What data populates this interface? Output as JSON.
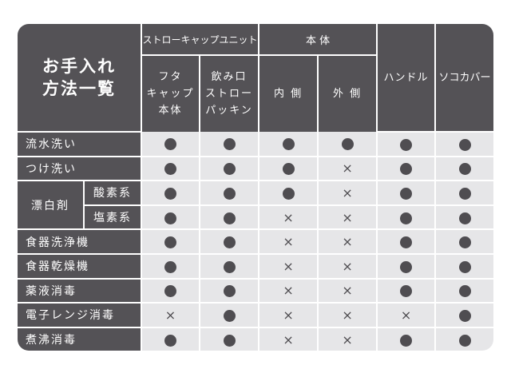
{
  "title_line1": "お手入れ",
  "title_line2": "方法一覧",
  "groups": {
    "straw_cap_unit": "ストローキャップユニット",
    "body": "本 体",
    "handle": "ハンドル",
    "sokocover": "ソコカバー"
  },
  "columns": [
    {
      "lines": [
        "フタ",
        "キャップ",
        "本体"
      ]
    },
    {
      "lines": [
        "飲み口",
        "ストロー",
        "パッキン"
      ]
    },
    {
      "lines": [
        "内 側"
      ]
    },
    {
      "lines": [
        "外 側"
      ]
    }
  ],
  "bleach_label": "漂白剤",
  "symbols": {
    "yes": "●",
    "no": "×"
  },
  "colors": {
    "header": "#545256",
    "cell": "#e6e6e8",
    "mark": "#4f4d51"
  },
  "rows": [
    {
      "label": "流水洗い",
      "values": [
        "yes",
        "yes",
        "yes",
        "yes",
        "yes",
        "yes"
      ]
    },
    {
      "label": "つけ洗い",
      "values": [
        "yes",
        "yes",
        "yes",
        "no",
        "yes",
        "yes"
      ]
    },
    {
      "label": "酸素系",
      "values": [
        "yes",
        "yes",
        "yes",
        "no",
        "yes",
        "yes"
      ]
    },
    {
      "label": "塩素系",
      "values": [
        "yes",
        "yes",
        "no",
        "no",
        "yes",
        "yes"
      ]
    },
    {
      "label": "食器洗浄機",
      "values": [
        "yes",
        "yes",
        "no",
        "no",
        "yes",
        "yes"
      ]
    },
    {
      "label": "食器乾燥機",
      "values": [
        "yes",
        "yes",
        "no",
        "no",
        "yes",
        "yes"
      ]
    },
    {
      "label": "薬液消毒",
      "values": [
        "yes",
        "yes",
        "no",
        "no",
        "yes",
        "yes"
      ]
    },
    {
      "label": "電子レンジ消毒",
      "values": [
        "no",
        "yes",
        "no",
        "no",
        "no",
        "yes"
      ]
    },
    {
      "label": "煮沸消毒",
      "values": [
        "yes",
        "yes",
        "no",
        "no",
        "yes",
        "yes"
      ]
    }
  ]
}
